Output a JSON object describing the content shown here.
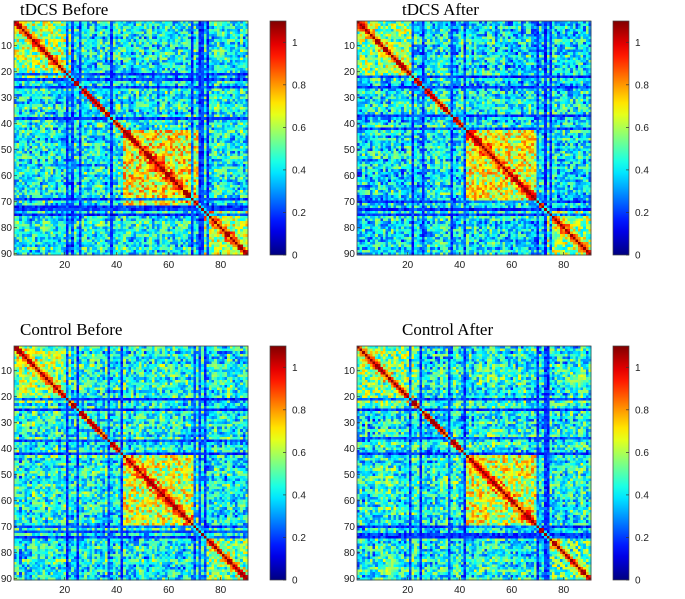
{
  "chart_data": [
    {
      "type": "heatmap",
      "title": "tDCS Before",
      "matrix_size": 90,
      "x_ticks": [
        20,
        40,
        60,
        80
      ],
      "y_ticks": [
        10,
        20,
        30,
        40,
        50,
        60,
        70,
        80,
        90
      ],
      "colorbar_ticks": [
        0,
        0.2,
        0.4,
        0.6,
        0.8,
        1
      ],
      "clim": [
        0,
        1.1
      ],
      "colormap": "jet",
      "seed": 11,
      "blocks": [
        [
          0,
          22,
          0.58
        ],
        [
          42,
          71,
          0.68
        ],
        [
          73,
          90,
          0.6
        ]
      ],
      "low_rows": [
        20,
        22,
        25,
        37,
        68,
        71,
        72,
        74
      ],
      "overall_mean": 0.42
    },
    {
      "type": "heatmap",
      "title": "tDCS After",
      "matrix_size": 90,
      "x_ticks": [
        20,
        40,
        60,
        80
      ],
      "y_ticks": [
        10,
        20,
        30,
        40,
        50,
        60,
        70,
        80,
        90
      ],
      "colorbar_ticks": [
        0,
        0.2,
        0.4,
        0.6,
        0.8,
        1
      ],
      "clim": [
        0,
        1.1
      ],
      "colormap": "jet",
      "seed": 23,
      "blocks": [
        [
          0,
          22,
          0.55
        ],
        [
          42,
          70,
          0.66
        ],
        [
          73,
          90,
          0.58
        ]
      ],
      "low_rows": [
        21,
        25,
        36,
        41,
        69,
        72,
        74
      ],
      "overall_mean": 0.4
    },
    {
      "type": "heatmap",
      "title": "Control Before",
      "matrix_size": 90,
      "x_ticks": [
        20,
        40,
        60,
        80
      ],
      "y_ticks": [
        10,
        20,
        30,
        40,
        50,
        60,
        70,
        80,
        90
      ],
      "colorbar_ticks": [
        0,
        0.2,
        0.4,
        0.6,
        0.8,
        1
      ],
      "clim": [
        0,
        1.1
      ],
      "colormap": "jet",
      "seed": 37,
      "blocks": [
        [
          0,
          22,
          0.56
        ],
        [
          42,
          70,
          0.64
        ],
        [
          73,
          90,
          0.52
        ]
      ],
      "low_rows": [
        20,
        24,
        36,
        41,
        69,
        71,
        73
      ],
      "overall_mean": 0.43
    },
    {
      "type": "heatmap",
      "title": "Control After",
      "matrix_size": 90,
      "x_ticks": [
        20,
        40,
        60,
        80
      ],
      "y_ticks": [
        10,
        20,
        30,
        40,
        50,
        60,
        70,
        80,
        90
      ],
      "colorbar_ticks": [
        0,
        0.2,
        0.4,
        0.6,
        0.8,
        1
      ],
      "clim": [
        0,
        1.1
      ],
      "colormap": "jet",
      "seed": 53,
      "blocks": [
        [
          0,
          22,
          0.55
        ],
        [
          42,
          70,
          0.64
        ],
        [
          73,
          90,
          0.5
        ]
      ],
      "low_rows": [
        20,
        24,
        35,
        41,
        69,
        72,
        73
      ],
      "overall_mean": 0.42
    }
  ]
}
